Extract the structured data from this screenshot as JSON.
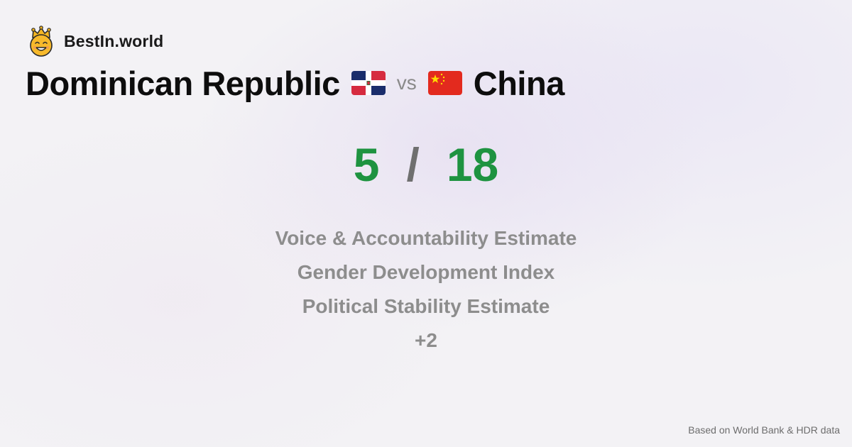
{
  "brand": {
    "name": "BestIn.world",
    "logo_icon": "crowned-smiley-icon"
  },
  "comparison": {
    "left_country": "Dominican Republic",
    "left_flag_icon": "dominican-republic-flag-icon",
    "vs_label": "vs",
    "right_country": "China",
    "right_flag_icon": "china-flag-icon"
  },
  "score": {
    "left": "5",
    "separator": "/",
    "right": "18",
    "color": "#1e9340"
  },
  "metrics": [
    "Voice & Accountability Estimate",
    "Gender Development Index",
    "Political Stability Estimate"
  ],
  "more_label": "+2",
  "footer": {
    "source": "Based on World Bank & HDR data"
  }
}
